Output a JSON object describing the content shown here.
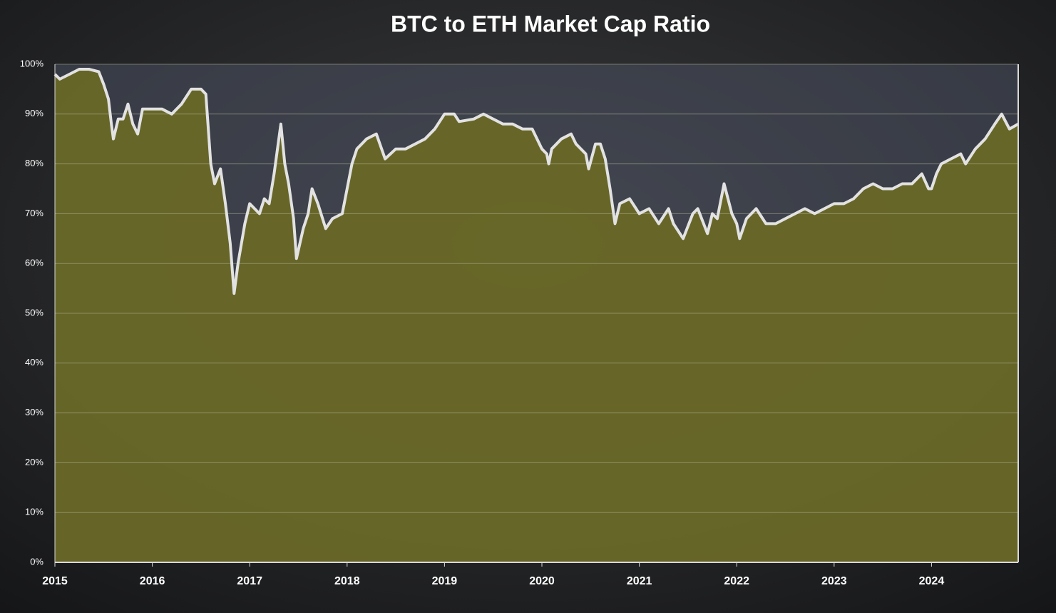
{
  "chart_data": {
    "type": "area",
    "title": "BTC to ETH Market Cap Ratio",
    "series": [
      {
        "name": "BTC to ETH Market Cap Ratio",
        "color": "#e2e2e2",
        "fill": "#6b6a25",
        "x": [
          2015.0,
          2015.05,
          2015.15,
          2015.25,
          2015.35,
          2015.45,
          2015.5,
          2015.55,
          2015.58,
          2015.6,
          2015.65,
          2015.7,
          2015.75,
          2015.8,
          2015.85,
          2015.9,
          2016.0,
          2016.1,
          2016.2,
          2016.3,
          2016.4,
          2016.5,
          2016.55,
          2016.6,
          2016.64,
          2016.7,
          2016.75,
          2016.8,
          2016.84,
          2016.88,
          2016.95,
          2017.0,
          2017.1,
          2017.15,
          2017.2,
          2017.25,
          2017.32,
          2017.36,
          2017.4,
          2017.45,
          2017.48,
          2017.55,
          2017.6,
          2017.64,
          2017.7,
          2017.78,
          2017.85,
          2017.95,
          2018.0,
          2018.05,
          2018.1,
          2018.2,
          2018.3,
          2018.39,
          2018.5,
          2018.6,
          2018.7,
          2018.8,
          2018.9,
          2019.0,
          2019.1,
          2019.15,
          2019.3,
          2019.4,
          2019.5,
          2019.6,
          2019.7,
          2019.8,
          2019.9,
          2020.0,
          2020.05,
          2020.07,
          2020.1,
          2020.2,
          2020.3,
          2020.35,
          2020.45,
          2020.48,
          2020.55,
          2020.6,
          2020.65,
          2020.7,
          2020.75,
          2020.8,
          2020.9,
          2021.0,
          2021.1,
          2021.2,
          2021.3,
          2021.35,
          2021.45,
          2021.55,
          2021.6,
          2021.7,
          2021.75,
          2021.8,
          2021.87,
          2021.95,
          2022.0,
          2022.03,
          2022.1,
          2022.2,
          2022.3,
          2022.4,
          2022.5,
          2022.6,
          2022.7,
          2022.8,
          2022.9,
          2023.0,
          2023.1,
          2023.2,
          2023.3,
          2023.4,
          2023.5,
          2023.6,
          2023.7,
          2023.8,
          2023.9,
          2023.97,
          2024.0,
          2024.05,
          2024.1,
          2024.2,
          2024.3,
          2024.35,
          2024.45,
          2024.55,
          2024.65,
          2024.72,
          2024.8,
          2024.89
        ],
        "values": [
          98,
          97,
          98,
          99,
          99,
          98.5,
          96,
          93,
          88,
          85,
          89,
          89,
          92,
          88,
          86,
          91,
          91,
          91,
          90,
          92,
          95,
          95,
          94,
          80,
          76,
          79,
          72,
          64,
          54,
          60,
          68,
          72,
          70,
          73,
          72,
          78,
          88,
          80,
          76,
          69,
          61,
          67,
          70,
          75,
          72,
          67,
          69,
          70,
          75,
          80,
          83,
          85,
          86,
          81,
          83,
          83,
          84,
          85,
          87,
          90,
          90,
          88.5,
          89,
          90,
          89,
          88,
          88,
          87,
          87,
          83,
          82,
          80,
          83,
          85,
          86,
          84,
          82,
          79,
          84,
          84,
          81,
          75,
          68,
          72,
          73,
          70,
          71,
          68,
          71,
          68,
          65,
          70,
          71,
          66,
          70,
          69,
          76,
          70,
          68,
          65,
          69,
          71,
          68,
          68,
          69,
          70,
          71,
          70,
          71,
          72,
          72,
          73,
          75,
          76,
          75,
          75,
          76,
          76,
          78,
          75,
          75,
          78,
          80,
          81,
          82,
          80,
          83,
          85,
          88,
          90,
          87,
          88
        ]
      }
    ],
    "xlim": [
      2015,
      2024.89
    ],
    "xticks": [
      2015,
      2016,
      2017,
      2018,
      2019,
      2020,
      2021,
      2022,
      2023,
      2024
    ],
    "ylim": [
      0,
      100
    ],
    "yticks": [
      {
        "value": 0,
        "label": "0%"
      },
      {
        "value": 10,
        "label": "10%"
      },
      {
        "value": 20,
        "label": "20%"
      },
      {
        "value": 30,
        "label": "30%"
      },
      {
        "value": 40,
        "label": "40%"
      },
      {
        "value": 50,
        "label": "50%"
      },
      {
        "value": 60,
        "label": "60%"
      },
      {
        "value": 70,
        "label": "70%"
      },
      {
        "value": 80,
        "label": "80%"
      },
      {
        "value": 90,
        "label": "90%"
      },
      {
        "value": 100,
        "label": "100%"
      }
    ],
    "grid": true
  }
}
